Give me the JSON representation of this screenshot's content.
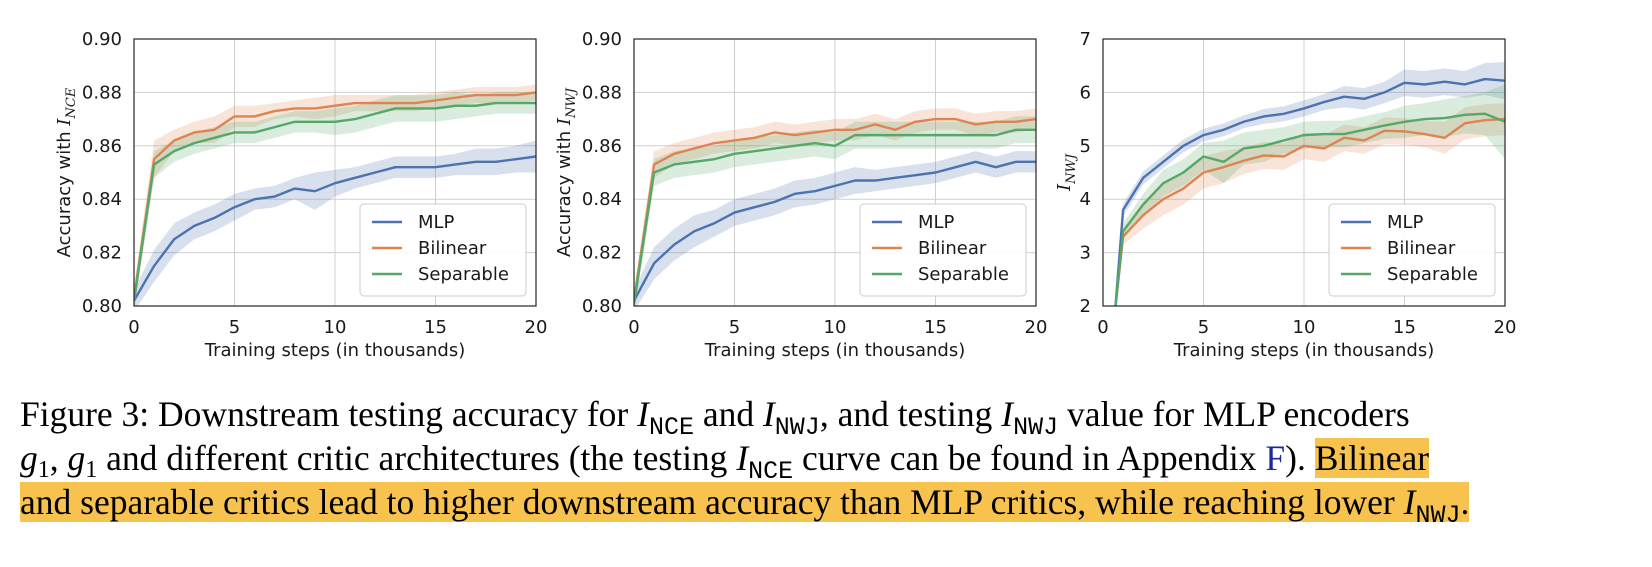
{
  "chart_data": [
    {
      "type": "line",
      "ylabel_prefix": "Accuracy with ",
      "ylabel_symbol": "I",
      "ylabel_sub": "NCE",
      "xlabel": "Training steps (in thousands)",
      "xlim": [
        0,
        20
      ],
      "ylim": [
        0.8,
        0.9
      ],
      "xticks": [
        "0",
        "5",
        "10",
        "15",
        "20"
      ],
      "yticks": [
        "0.80",
        "0.82",
        "0.84",
        "0.86",
        "0.88",
        "0.90"
      ],
      "grid": true,
      "legend_position": "lower-right",
      "x": [
        0,
        1,
        2,
        3,
        4,
        5,
        6,
        7,
        8,
        9,
        10,
        11,
        12,
        13,
        14,
        15,
        16,
        17,
        18,
        19,
        20
      ],
      "series": [
        {
          "name": "MLP",
          "color": "#4c72b0",
          "values": [
            0.802,
            0.815,
            0.825,
            0.83,
            0.833,
            0.837,
            0.84,
            0.841,
            0.844,
            0.843,
            0.846,
            0.848,
            0.85,
            0.852,
            0.852,
            0.852,
            0.853,
            0.854,
            0.854,
            0.855,
            0.856
          ],
          "band": [
            0.004,
            0.006,
            0.006,
            0.005,
            0.005,
            0.005,
            0.004,
            0.004,
            0.004,
            0.007,
            0.005,
            0.004,
            0.004,
            0.004,
            0.004,
            0.004,
            0.004,
            0.005,
            0.005,
            0.005,
            0.006
          ]
        },
        {
          "name": "Bilinear",
          "color": "#dd8452",
          "values": [
            0.803,
            0.855,
            0.862,
            0.865,
            0.866,
            0.871,
            0.871,
            0.873,
            0.874,
            0.874,
            0.875,
            0.876,
            0.876,
            0.876,
            0.876,
            0.877,
            0.878,
            0.879,
            0.879,
            0.879,
            0.88
          ],
          "band": [
            0.004,
            0.007,
            0.004,
            0.004,
            0.005,
            0.004,
            0.004,
            0.003,
            0.003,
            0.004,
            0.004,
            0.003,
            0.003,
            0.003,
            0.003,
            0.003,
            0.003,
            0.003,
            0.003,
            0.003,
            0.003
          ]
        },
        {
          "name": "Separable",
          "color": "#55a868",
          "values": [
            0.802,
            0.853,
            0.858,
            0.861,
            0.863,
            0.865,
            0.865,
            0.867,
            0.869,
            0.869,
            0.869,
            0.87,
            0.872,
            0.874,
            0.874,
            0.874,
            0.875,
            0.875,
            0.876,
            0.876,
            0.876
          ],
          "band": [
            0.004,
            0.005,
            0.004,
            0.004,
            0.004,
            0.004,
            0.004,
            0.004,
            0.004,
            0.004,
            0.005,
            0.005,
            0.005,
            0.005,
            0.005,
            0.005,
            0.005,
            0.004,
            0.004,
            0.004,
            0.004
          ]
        }
      ]
    },
    {
      "type": "line",
      "ylabel_prefix": "Accuracy with ",
      "ylabel_symbol": "I",
      "ylabel_sub": "NWJ",
      "xlabel": "Training steps (in thousands)",
      "xlim": [
        0,
        20
      ],
      "ylim": [
        0.8,
        0.9
      ],
      "xticks": [
        "0",
        "5",
        "10",
        "15",
        "20"
      ],
      "yticks": [
        "0.80",
        "0.82",
        "0.84",
        "0.86",
        "0.88",
        "0.90"
      ],
      "grid": true,
      "legend_position": "lower-right",
      "x": [
        0,
        1,
        2,
        3,
        4,
        5,
        6,
        7,
        8,
        9,
        10,
        11,
        12,
        13,
        14,
        15,
        16,
        17,
        18,
        19,
        20
      ],
      "series": [
        {
          "name": "MLP",
          "color": "#4c72b0",
          "values": [
            0.802,
            0.816,
            0.823,
            0.828,
            0.831,
            0.835,
            0.837,
            0.839,
            0.842,
            0.843,
            0.845,
            0.847,
            0.847,
            0.848,
            0.849,
            0.85,
            0.852,
            0.854,
            0.852,
            0.854,
            0.854
          ],
          "band": [
            0.004,
            0.006,
            0.006,
            0.006,
            0.005,
            0.005,
            0.005,
            0.005,
            0.005,
            0.005,
            0.005,
            0.005,
            0.004,
            0.004,
            0.004,
            0.004,
            0.004,
            0.004,
            0.004,
            0.004,
            0.004
          ]
        },
        {
          "name": "Bilinear",
          "color": "#dd8452",
          "values": [
            0.802,
            0.853,
            0.857,
            0.859,
            0.861,
            0.862,
            0.863,
            0.865,
            0.864,
            0.865,
            0.866,
            0.866,
            0.868,
            0.866,
            0.869,
            0.87,
            0.87,
            0.868,
            0.869,
            0.869,
            0.87
          ],
          "band": [
            0.004,
            0.005,
            0.004,
            0.004,
            0.004,
            0.004,
            0.004,
            0.004,
            0.004,
            0.004,
            0.004,
            0.004,
            0.004,
            0.004,
            0.004,
            0.004,
            0.004,
            0.004,
            0.004,
            0.004,
            0.004
          ]
        },
        {
          "name": "Separable",
          "color": "#55a868",
          "values": [
            0.801,
            0.85,
            0.853,
            0.854,
            0.855,
            0.857,
            0.858,
            0.859,
            0.86,
            0.861,
            0.86,
            0.864,
            0.864,
            0.864,
            0.864,
            0.864,
            0.864,
            0.864,
            0.864,
            0.866,
            0.866
          ],
          "band": [
            0.004,
            0.005,
            0.005,
            0.005,
            0.005,
            0.005,
            0.005,
            0.005,
            0.005,
            0.005,
            0.005,
            0.005,
            0.005,
            0.005,
            0.005,
            0.005,
            0.005,
            0.005,
            0.005,
            0.005,
            0.005
          ]
        }
      ]
    },
    {
      "type": "line",
      "ylabel_prefix": "",
      "ylabel_symbol": "I",
      "ylabel_sub": "NWJ",
      "xlabel": "Training steps (in thousands)",
      "xlim": [
        0,
        20
      ],
      "ylim": [
        2,
        7
      ],
      "xticks": [
        "0",
        "5",
        "10",
        "15",
        "20"
      ],
      "yticks": [
        "2",
        "3",
        "4",
        "5",
        "6",
        "7"
      ],
      "grid": true,
      "legend_position": "lower-right",
      "x": [
        0.6,
        1,
        2,
        3,
        4,
        5,
        6,
        7,
        8,
        9,
        10,
        11,
        12,
        13,
        14,
        15,
        16,
        17,
        18,
        19,
        20
      ],
      "series": [
        {
          "name": "MLP",
          "color": "#4c72b0",
          "values": [
            1.9,
            3.8,
            4.4,
            4.7,
            5.0,
            5.2,
            5.3,
            5.45,
            5.55,
            5.6,
            5.7,
            5.82,
            5.92,
            5.88,
            6.0,
            6.18,
            6.15,
            6.2,
            6.15,
            6.25,
            6.22
          ],
          "band": [
            0.1,
            0.12,
            0.12,
            0.12,
            0.12,
            0.12,
            0.12,
            0.12,
            0.14,
            0.14,
            0.15,
            0.15,
            0.2,
            0.2,
            0.2,
            0.25,
            0.25,
            0.25,
            0.25,
            0.3,
            0.35
          ]
        },
        {
          "name": "Bilinear",
          "color": "#dd8452",
          "values": [
            1.9,
            3.3,
            3.7,
            4.0,
            4.2,
            4.5,
            4.6,
            4.72,
            4.82,
            4.8,
            5.0,
            4.95,
            5.15,
            5.1,
            5.28,
            5.27,
            5.22,
            5.15,
            5.42,
            5.48,
            5.5
          ],
          "band": [
            0.1,
            0.15,
            0.25,
            0.3,
            0.3,
            0.3,
            0.3,
            0.25,
            0.25,
            0.25,
            0.25,
            0.25,
            0.25,
            0.25,
            0.25,
            0.25,
            0.25,
            0.3,
            0.3,
            0.3,
            0.3
          ]
        },
        {
          "name": "Separable",
          "color": "#55a868",
          "values": [
            1.9,
            3.4,
            3.9,
            4.3,
            4.5,
            4.8,
            4.7,
            4.95,
            5.0,
            5.1,
            5.2,
            5.22,
            5.22,
            5.3,
            5.38,
            5.45,
            5.5,
            5.52,
            5.58,
            5.6,
            5.45
          ],
          "band": [
            0.1,
            0.15,
            0.2,
            0.25,
            0.25,
            0.25,
            0.4,
            0.3,
            0.3,
            0.25,
            0.25,
            0.25,
            0.25,
            0.25,
            0.25,
            0.3,
            0.3,
            0.35,
            0.35,
            0.4,
            0.7
          ]
        }
      ]
    }
  ],
  "caption": {
    "l1_a": "Figure 3: Downstream testing accuracy for ",
    "sym_I": "I",
    "sub_nce": "NCE",
    "sub_nwj": "NWJ",
    "l1_and": " and ",
    "l1_comma": ", and testing ",
    "l1_b": " value for MLP encoders",
    "g": "g",
    "one": "1",
    "comma_sp": ", ",
    "l2_a": " and different critic architectures (the testing ",
    "l2_b": " curve can be found in Appendix ",
    "l2_ref": "F",
    "l2_c": "). ",
    "l2_hl": "Bilinear",
    "l3_hl": "and separable critics lead to higher downstream accuracy than MLP critics, while reaching lower ",
    "l3_end": "."
  }
}
